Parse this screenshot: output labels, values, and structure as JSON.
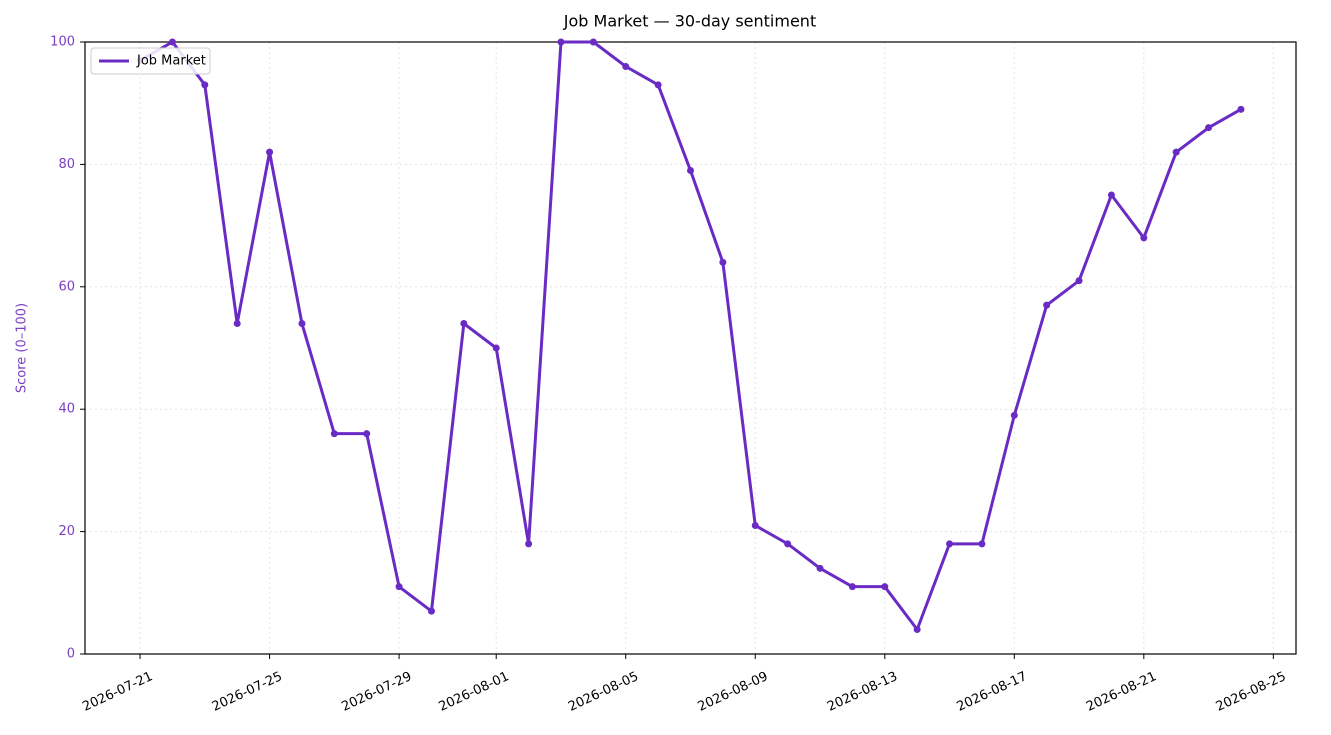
{
  "chart_data": {
    "type": "line",
    "title": "Job Market — 30-day sentiment",
    "y_label": "Score (0–100)",
    "x": [
      "2026-07-21",
      "2026-07-22",
      "2026-07-23",
      "2026-07-24",
      "2026-07-25",
      "2026-07-26",
      "2026-07-27",
      "2026-07-28",
      "2026-07-29",
      "2026-07-30",
      "2026-07-31",
      "2026-08-01",
      "2026-08-02",
      "2026-08-03",
      "2026-08-04",
      "2026-08-05",
      "2026-08-06",
      "2026-08-07",
      "2026-08-08",
      "2026-08-09",
      "2026-08-10",
      "2026-08-11",
      "2026-08-12",
      "2026-08-13",
      "2026-08-14",
      "2026-08-15",
      "2026-08-16",
      "2026-08-17",
      "2026-08-18",
      "2026-08-19",
      "2026-08-20",
      "2026-08-21",
      "2026-08-22",
      "2026-08-23",
      "2026-08-24"
    ],
    "series": [
      {
        "name": "Job Market",
        "color": "#6a2bc4",
        "values": [
          97,
          100,
          93,
          54,
          82,
          54,
          36,
          36,
          11,
          7,
          54,
          50,
          18,
          100,
          100,
          96,
          93,
          79,
          64,
          21,
          18,
          14,
          11,
          11,
          4,
          18,
          18,
          39,
          57,
          61,
          75,
          68,
          82,
          86,
          89
        ]
      }
    ],
    "xlim": [
      "2026-07-19T07:12",
      "2026-08-25T16:48"
    ],
    "xticks": [
      "2026-07-21",
      "2026-07-25",
      "2026-07-29",
      "2026-08-01",
      "2026-08-05",
      "2026-08-09",
      "2026-08-13",
      "2026-08-17",
      "2026-08-21",
      "2026-08-25"
    ],
    "ylim": [
      0,
      100
    ],
    "yticks": [
      0,
      20,
      40,
      60,
      80,
      100
    ],
    "grid": true,
    "legend": "upper left",
    "axis_color": "#7b3fbf"
  }
}
